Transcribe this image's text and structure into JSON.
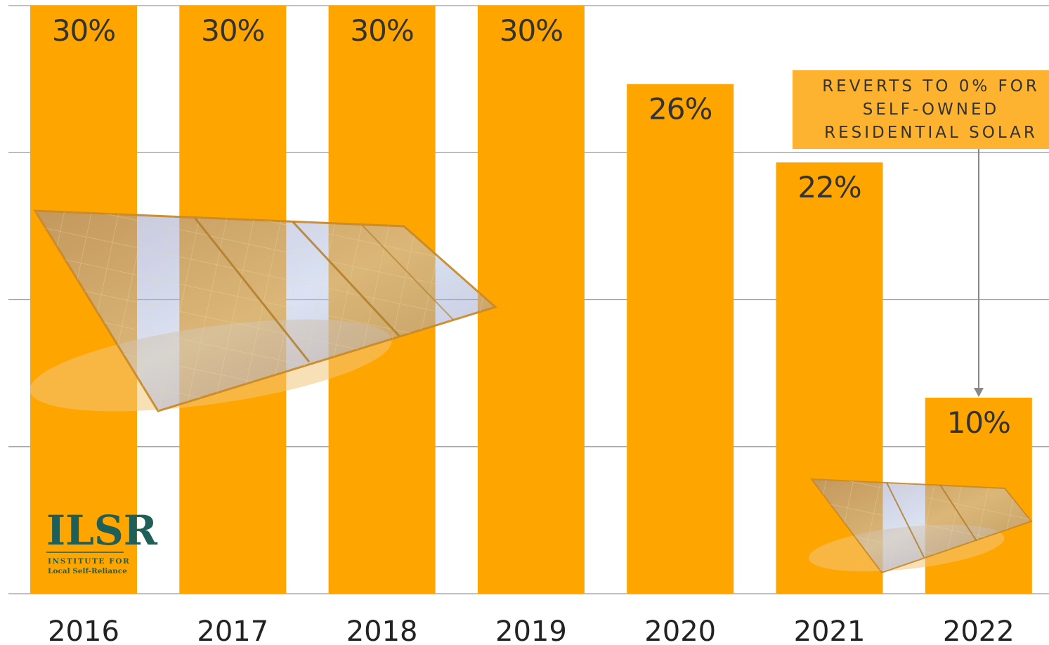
{
  "chart_data": {
    "type": "bar",
    "categories": [
      "2016",
      "2017",
      "2018",
      "2019",
      "2020",
      "2021",
      "2022"
    ],
    "values": [
      30,
      30,
      30,
      30,
      26,
      22,
      10
    ],
    "value_labels": [
      "30%",
      "30%",
      "30%",
      "30%",
      "26%",
      "22%",
      "10%"
    ],
    "ylim": [
      0,
      30
    ],
    "grid": true,
    "annotation": {
      "lines": [
        "REVERTS TO 0% FOR",
        "SELF-OWNED",
        "RESIDENTIAL SOLAR"
      ],
      "points_to": "2022"
    },
    "colors": {
      "bar": "#FFA500",
      "callout": "#FDB32F",
      "grid": "#9A9A9A"
    }
  },
  "logo": {
    "name": "ILSR",
    "line1": "INSTITUTE FOR",
    "line2": "Local Self-Reliance"
  },
  "icons": [
    "solar-panel-icon",
    "solar-panel-small-icon"
  ]
}
